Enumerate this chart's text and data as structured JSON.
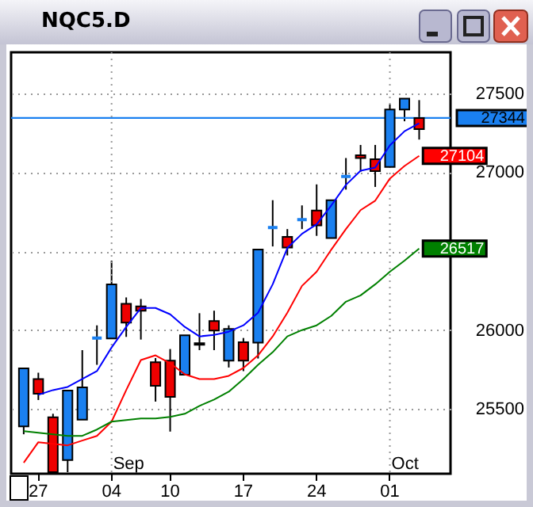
{
  "chart_data": {
    "type": "candlestick",
    "title": "NQC5.D",
    "categories": [
      null,
      "27",
      null,
      null,
      null,
      null,
      "04",
      null,
      null,
      null,
      "10",
      null,
      null,
      null,
      null,
      "17",
      null,
      null,
      null,
      null,
      "24",
      null,
      null,
      null,
      null,
      "01",
      null,
      null
    ],
    "ohlc": [
      [
        25757,
        25757,
        25340,
        25390
      ],
      [
        25597,
        25730,
        25557,
        25690
      ],
      [
        25100,
        25470,
        25100,
        25447
      ],
      [
        25617,
        25617,
        25100,
        25177
      ],
      [
        25637,
        25873,
        25433,
        25433
      ],
      [
        25950,
        26030,
        25780,
        25950
      ],
      [
        26290,
        26440,
        25947,
        25947
      ],
      [
        26047,
        26207,
        25957,
        26167
      ],
      [
        26123,
        26197,
        25940,
        26150
      ],
      [
        25647,
        25823,
        25547,
        25797
      ],
      [
        25577,
        25880,
        25357,
        25807
      ],
      [
        25967,
        25967,
        25717,
        25717
      ],
      [
        25907,
        26107,
        25873,
        25917
      ],
      [
        25997,
        26123,
        25873,
        26057
      ],
      [
        26007,
        26030,
        25763,
        25807
      ],
      [
        25807,
        25950,
        25740,
        25923
      ],
      [
        26510,
        26510,
        25820,
        25920
      ],
      [
        26650,
        26823,
        26530,
        26650
      ],
      [
        26523,
        26640,
        26473,
        26590
      ],
      [
        26700,
        26790,
        26640,
        26700
      ],
      [
        26663,
        26923,
        26597,
        26757
      ],
      [
        26823,
        26823,
        26583,
        26583
      ],
      [
        26973,
        27090,
        26890,
        26973
      ],
      [
        27090,
        27173,
        27003,
        27107
      ],
      [
        27007,
        27173,
        26907,
        27083
      ],
      [
        27397,
        27430,
        27033,
        27033
      ],
      [
        27467,
        27467,
        27323,
        27397
      ],
      [
        27273,
        27457,
        27207,
        27344
      ]
    ],
    "colors": [
      "#1a80f0",
      "#ee0000",
      "#ee0000",
      "#1a80f0",
      "#1a80f0",
      "#1a80f0",
      "#1a80f0",
      "#ee0000",
      "#ee0000",
      "#ee0000",
      "#ee0000",
      "#1a80f0",
      "#ee0000",
      "#ee0000",
      "#1a80f0",
      "#ee0000",
      "#1a80f0",
      "#1a80f0",
      "#ee0000",
      "#1a80f0",
      "#ee0000",
      "#1a80f0",
      "#1a80f0",
      "#ee0000",
      "#ee0000",
      "#1a80f0",
      "#1a80f0",
      "#ee0000"
    ],
    "series": [
      {
        "type": "line",
        "color": "#0000ff",
        "values": [
          null,
          25590,
          25620,
          25640,
          25690,
          25740,
          25890,
          26020,
          26140,
          26140,
          26100,
          26020,
          25960,
          25970,
          25990,
          26030,
          26110,
          26290,
          26520,
          26610,
          26670,
          26790,
          26920,
          27010,
          27030,
          27170,
          27260,
          27310
        ]
      },
      {
        "type": "line",
        "color": "#ff0000",
        "values": [
          25160,
          25290,
          25280,
          25270,
          25300,
          25330,
          25420,
          25620,
          25810,
          25840,
          25790,
          25720,
          25690,
          25690,
          25710,
          25760,
          25840,
          25960,
          26110,
          26280,
          26370,
          26510,
          26640,
          26760,
          26820,
          26960,
          27040,
          27104
        ],
        "value_labels": [
          null,
          null,
          null,
          null,
          null,
          null,
          null,
          null,
          null,
          null,
          null,
          null,
          null,
          null,
          null,
          null,
          null,
          null,
          null,
          null,
          null,
          null,
          null,
          null,
          null,
          null,
          null,
          "27104"
        ]
      },
      {
        "type": "line",
        "color": "#008000",
        "values": [
          25360,
          25350,
          25340,
          25330,
          25330,
          25370,
          25420,
          25430,
          25440,
          25440,
          25450,
          25470,
          25520,
          25560,
          25610,
          25690,
          25780,
          25860,
          25960,
          26000,
          26030,
          26090,
          26180,
          26220,
          26290,
          26370,
          26440,
          26517
        ],
        "value_labels": [
          null,
          null,
          null,
          null,
          null,
          null,
          null,
          null,
          null,
          null,
          null,
          null,
          null,
          null,
          null,
          null,
          null,
          null,
          null,
          null,
          null,
          null,
          null,
          null,
          null,
          null,
          null,
          "26517"
        ]
      }
    ],
    "ylim": [
      25090,
      27760
    ],
    "yticks": [
      25500,
      26000,
      {
        "value": 26500,
        "label": null
      },
      27000,
      27500
    ],
    "grid": "y",
    "ref_lines": [
      {
        "axis": "y",
        "value": 27344,
        "label": "27344",
        "color": "#1a80f0"
      },
      {
        "axis": "x",
        "value": "04",
        "label": "Sep",
        "line_style": "dotted"
      },
      {
        "axis": "x",
        "value": "01",
        "label": "Oct",
        "line_style": "dotted"
      }
    ]
  }
}
